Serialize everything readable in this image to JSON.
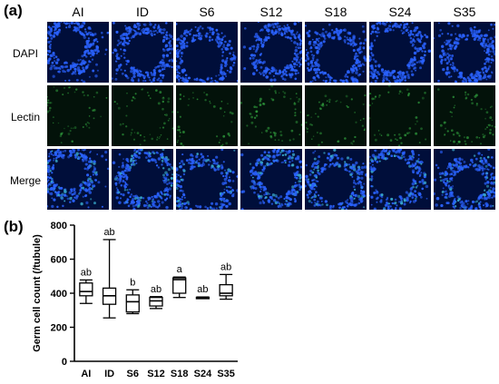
{
  "panels": {
    "a": "(a)",
    "b": "(b)"
  },
  "micrograph": {
    "columns": [
      "AI",
      "ID",
      "S6",
      "S12",
      "S18",
      "S24",
      "S35"
    ],
    "rows": [
      "DAPI",
      "Lectin",
      "Merge"
    ],
    "colors": {
      "dapi_background": "#000e3a",
      "dapi_nuclei": "#2a62ff",
      "lectin_background": "#03120a",
      "lectin_signal": "#2f9a3c",
      "separator": "#ffffff"
    }
  },
  "chart_data": {
    "type": "boxplot",
    "ylabel": "Germ cell count (/tubule)",
    "ylim": [
      0,
      800
    ],
    "yticks": [
      0,
      200,
      400,
      600,
      800
    ],
    "categories": [
      "AI",
      "ID",
      "S6",
      "S12",
      "S18",
      "S24",
      "S35"
    ],
    "boxes": [
      {
        "min": 340,
        "q1": 385,
        "median": 410,
        "q3": 460,
        "max": 478
      },
      {
        "min": 255,
        "q1": 335,
        "median": 385,
        "q3": 430,
        "max": 715
      },
      {
        "min": 280,
        "q1": 290,
        "median": 350,
        "q3": 390,
        "max": 420
      },
      {
        "min": 310,
        "q1": 325,
        "median": 355,
        "q3": 375,
        "max": 380
      },
      {
        "min": 375,
        "q1": 400,
        "median": 480,
        "q3": 490,
        "max": 495
      },
      {
        "min": 370,
        "q1": 372,
        "median": 375,
        "q3": 376,
        "max": 378
      },
      {
        "min": 365,
        "q1": 385,
        "median": 400,
        "q3": 450,
        "max": 510
      }
    ],
    "significance_labels": [
      "ab",
      "ab",
      "b",
      "ab",
      "a",
      "ab",
      "ab"
    ],
    "grid": false
  }
}
